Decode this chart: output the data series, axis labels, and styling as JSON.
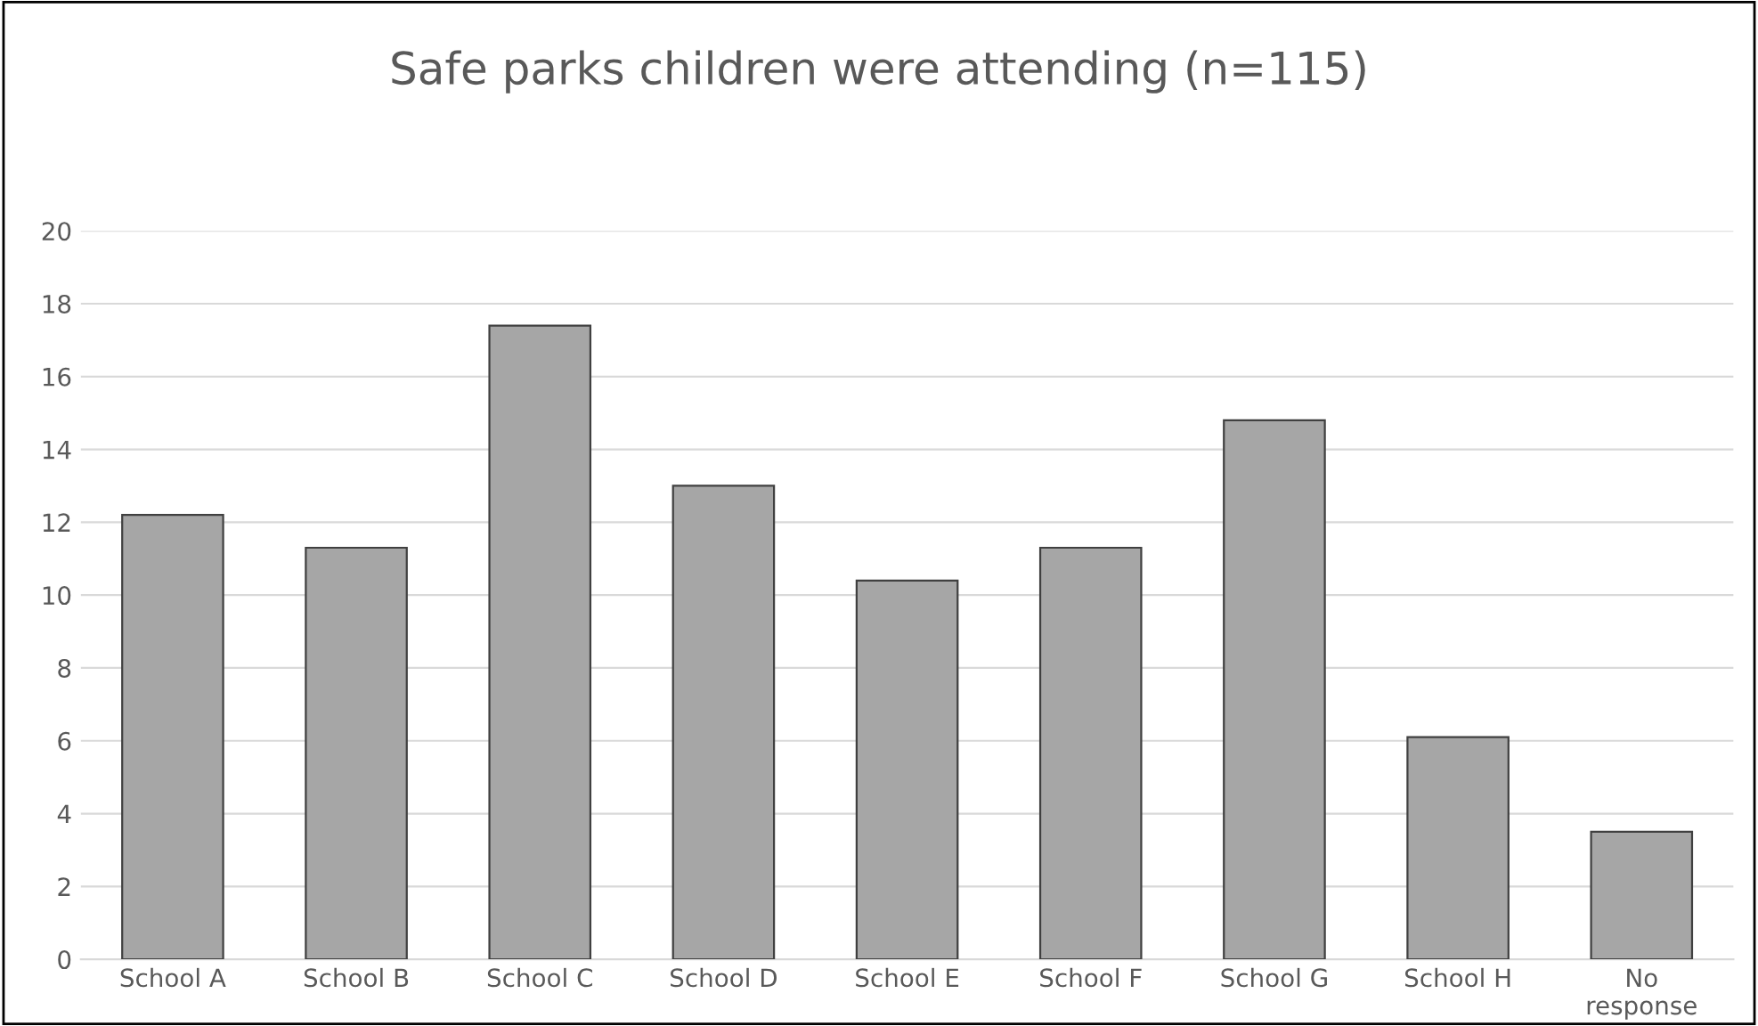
{
  "chart_data": {
    "type": "bar",
    "title": "Safe parks children were attending (n=115)",
    "categories": [
      "School A",
      "School B",
      "School C",
      "School D",
      "School E",
      "School F",
      "School G",
      "School H",
      "No\nresponse"
    ],
    "values": [
      12.2,
      11.3,
      17.4,
      13.0,
      10.4,
      11.3,
      14.8,
      6.1,
      3.5
    ],
    "color": "#a6a6a6",
    "ylim": [
      0,
      20
    ],
    "yticks": [
      0,
      2,
      4,
      6,
      8,
      10,
      12,
      14,
      16,
      18,
      20
    ],
    "grid": "y",
    "legend": false
  }
}
